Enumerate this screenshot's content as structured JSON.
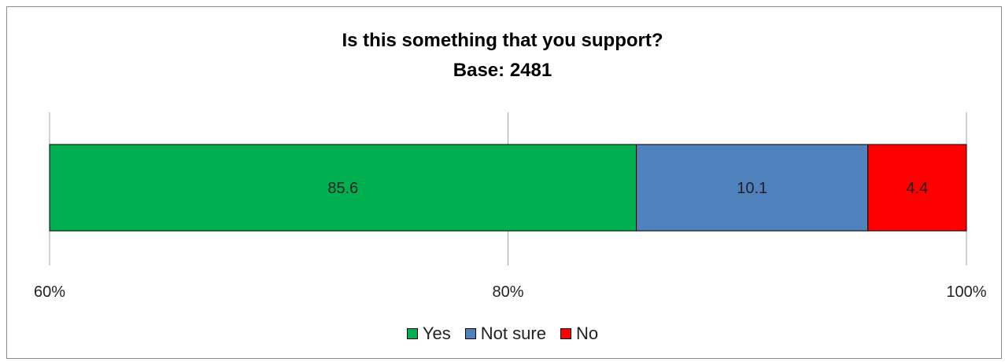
{
  "chart_data": {
    "type": "bar",
    "orientation": "horizontal",
    "stacked": true,
    "title": "Is this something that you support?",
    "subtitle": "Base: 2481",
    "xlim": [
      60,
      100
    ],
    "xticks": [
      "60%",
      "80%",
      "100%"
    ],
    "xtick_values": [
      60,
      80,
      100
    ],
    "grid": true,
    "legend_position": "bottom",
    "series": [
      {
        "name": "Yes",
        "value": 85.6,
        "label": "85.6",
        "color": "#00b050"
      },
      {
        "name": "Not sure",
        "value": 10.1,
        "label": "10.1",
        "color": "#4f81bd"
      },
      {
        "name": "No",
        "value": 4.4,
        "label": "4.4",
        "color": "#ff0000"
      }
    ]
  }
}
